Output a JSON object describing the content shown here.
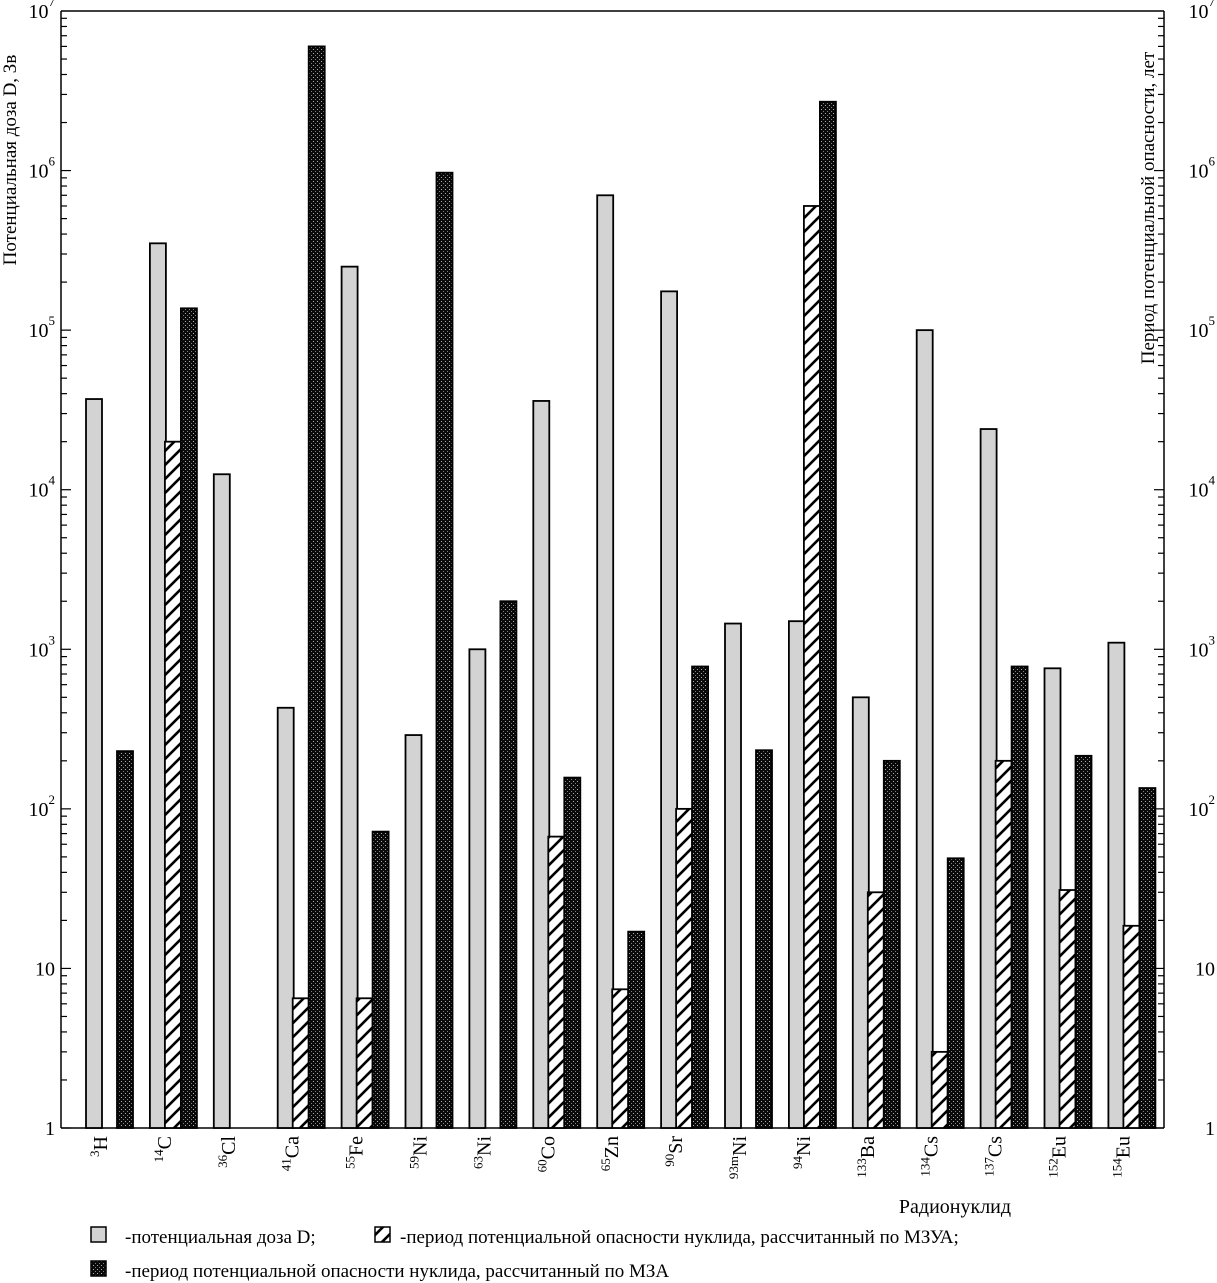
{
  "chart_data": {
    "type": "bar",
    "title": "",
    "ylabel_left": "Потенциальная доза D, Зв",
    "ylabel_right": "Период потенциальной опасности, лет",
    "xlabel": "Радионуклид",
    "y_scale": "log",
    "ylim": [
      1,
      10000000
    ],
    "y_ticks": [
      {
        "value": 1,
        "base": "1",
        "exp": ""
      },
      {
        "value": 10,
        "base": "10",
        "exp": ""
      },
      {
        "value": 100,
        "base": "10",
        "exp": "2"
      },
      {
        "value": 1000,
        "base": "10",
        "exp": "3"
      },
      {
        "value": 10000,
        "base": "10",
        "exp": "4"
      },
      {
        "value": 100000,
        "base": "10",
        "exp": "5"
      },
      {
        "value": 1000000,
        "base": "10",
        "exp": "6"
      },
      {
        "value": 10000000,
        "base": "10",
        "exp": "7"
      }
    ],
    "categories": [
      {
        "mass": "3",
        "el": "H"
      },
      {
        "mass": "14",
        "el": "C"
      },
      {
        "mass": "36",
        "el": "Cl"
      },
      {
        "mass": "41",
        "el": "Ca"
      },
      {
        "mass": "55",
        "el": "Fe"
      },
      {
        "mass": "59",
        "el": "Ni"
      },
      {
        "mass": "63",
        "el": "Ni"
      },
      {
        "mass": "60",
        "el": "Co"
      },
      {
        "mass": "65",
        "el": "Zn"
      },
      {
        "mass": "90",
        "el": "Sr"
      },
      {
        "mass": "93m",
        "el": "Ni"
      },
      {
        "mass": "94",
        "el": "Ni"
      },
      {
        "mass": "133",
        "el": "Ba"
      },
      {
        "mass": "134",
        "el": "Cs"
      },
      {
        "mass": "137",
        "el": "Cs"
      },
      {
        "mass": "152",
        "el": "Eu"
      },
      {
        "mass": "154",
        "el": "Eu"
      }
    ],
    "series": [
      {
        "name": "-потенциальная доза D;",
        "pattern": "gray",
        "values": [
          37000,
          350000,
          12500,
          430,
          250000,
          290,
          1000,
          36000,
          700000,
          175000,
          1450,
          1500,
          500,
          100000,
          24000,
          760,
          1100
        ]
      },
      {
        "name": "-период потенциальной опасности нуклида, рассчитанный по МЗУА;",
        "pattern": "hatch",
        "values": [
          null,
          20000,
          null,
          6.5,
          6.5,
          null,
          null,
          67,
          7.4,
          100,
          null,
          600000,
          30,
          3,
          200,
          31,
          18.5
        ]
      },
      {
        "name": "-период потенциальной опасности нуклида, рассчитанный по МЗА",
        "pattern": "dots",
        "values": [
          230,
          137000,
          null,
          6000000,
          72,
          970000,
          2000,
          157,
          17,
          780,
          233,
          2700000,
          200,
          49,
          780,
          215,
          135
        ]
      }
    ],
    "grid": false,
    "legend_position": "bottom-left"
  }
}
